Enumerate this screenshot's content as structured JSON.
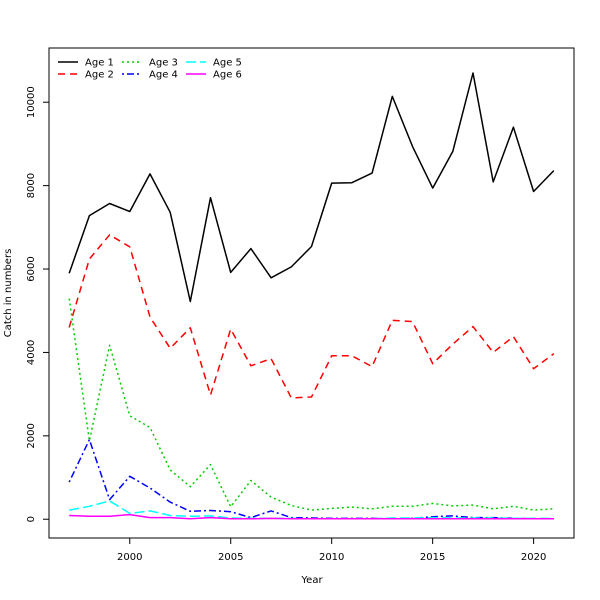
{
  "chart_data": {
    "type": "line",
    "title": "",
    "xlabel": "Year",
    "ylabel": "Catch in numbers",
    "xlim": [
      1996,
      2022
    ],
    "ylim": [
      -450,
      11300
    ],
    "xticks": [
      2000,
      2005,
      2010,
      2015,
      2020
    ],
    "yticks": [
      0,
      2000,
      4000,
      6000,
      8000,
      10000
    ],
    "legend_position": "top-left",
    "grid": false,
    "x": [
      1997,
      1998,
      1999,
      2000,
      2001,
      2002,
      2003,
      2004,
      2005,
      2006,
      2007,
      2008,
      2009,
      2010,
      2011,
      2012,
      2013,
      2014,
      2015,
      2016,
      2017,
      2018,
      2019,
      2020,
      2021
    ],
    "series": [
      {
        "name": "Age 1",
        "color": "#000000",
        "dash": "solid",
        "values": [
          5900,
          7280,
          7570,
          7380,
          8280,
          7360,
          5220,
          7710,
          5920,
          6490,
          5790,
          6050,
          6540,
          8060,
          8070,
          8300,
          10140,
          8940,
          7940,
          8820,
          10700,
          8090,
          9400,
          7860,
          8360
        ]
      },
      {
        "name": "Age 2",
        "color": "#ff0000",
        "dash": "dashed",
        "values": [
          4600,
          6240,
          6820,
          6530,
          4850,
          4100,
          4590,
          2980,
          4560,
          3680,
          3850,
          2910,
          2930,
          3920,
          3920,
          3660,
          4770,
          4740,
          3730,
          4200,
          4620,
          4000,
          4380,
          3610,
          3970
        ]
      },
      {
        "name": "Age 3",
        "color": "#00cd00",
        "dash": "dotted",
        "values": [
          5290,
          1880,
          4170,
          2480,
          2200,
          1180,
          780,
          1310,
          300,
          930,
          530,
          330,
          220,
          260,
          290,
          250,
          310,
          310,
          380,
          320,
          340,
          250,
          310,
          220,
          250
        ]
      },
      {
        "name": "Age 4",
        "color": "#0000ff",
        "dash": "dotdash",
        "values": [
          890,
          1910,
          470,
          1030,
          750,
          410,
          190,
          210,
          180,
          40,
          200,
          40,
          30,
          20,
          20,
          20,
          10,
          20,
          60,
          80,
          40,
          40,
          20,
          10,
          10
        ]
      },
      {
        "name": "Age 5",
        "color": "#00ffff",
        "dash": "longdash",
        "values": [
          220,
          310,
          440,
          140,
          200,
          90,
          70,
          80,
          30,
          20,
          20,
          20,
          10,
          10,
          10,
          10,
          30,
          30,
          40,
          30,
          30,
          30,
          20,
          20,
          20
        ]
      },
      {
        "name": "Age 6",
        "color": "#ff00ff",
        "dash": "solid",
        "values": [
          90,
          70,
          70,
          110,
          40,
          40,
          10,
          40,
          10,
          10,
          20,
          10,
          10,
          10,
          10,
          10,
          10,
          10,
          10,
          10,
          10,
          10,
          10,
          10,
          10
        ]
      }
    ]
  }
}
